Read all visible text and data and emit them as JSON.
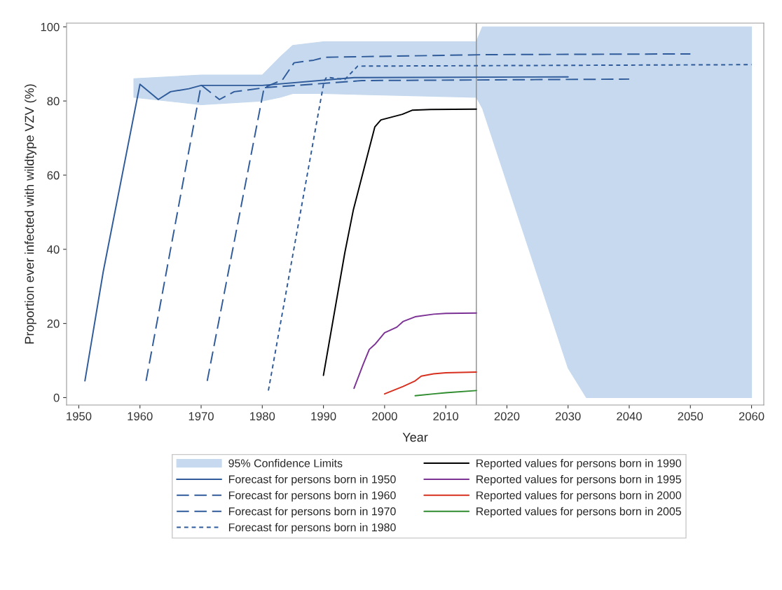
{
  "chart_data": {
    "type": "line",
    "xlabel": "Year",
    "ylabel": "Proportion ever infected with wildtype VZV (%)",
    "xlim": [
      1948,
      2062
    ],
    "xticks": [
      1950,
      1960,
      1970,
      1980,
      1990,
      2000,
      2010,
      2020,
      2030,
      2040,
      2050,
      2060
    ],
    "ylim": [
      -2,
      101
    ],
    "yticks": [
      0,
      20,
      40,
      60,
      80,
      100
    ],
    "grid": false,
    "legend": "bottom",
    "marker": "none",
    "ref_lines": [
      {
        "axis": "x",
        "value": 2015,
        "color": "#8c8c8c",
        "line_style": "solid"
      }
    ],
    "series": [
      {
        "name": "95% Confidence Limits",
        "type": "area",
        "color": "#c6d9ee",
        "x": [
          1959,
          1970,
          1980,
          1983,
          1985,
          1990,
          2015,
          2016,
          2020,
          2025,
          2030,
          2033,
          2060
        ],
        "values": [
          null,
          null,
          null,
          null,
          null,
          null,
          null,
          null,
          null,
          null,
          null,
          null,
          null
        ],
        "upper": [
          86,
          87,
          87,
          92,
          95,
          96,
          96,
          100,
          100,
          100,
          100,
          100,
          100
        ],
        "lower": [
          81,
          79,
          80,
          81,
          82,
          82,
          81,
          78,
          58,
          33,
          8,
          0,
          0
        ]
      },
      {
        "name": "Forecast for persons born in 1950",
        "color": "#2f5b9a",
        "line_style": "solid",
        "x": [
          1951,
          1954,
          1960,
          1963,
          1965,
          1968,
          1970,
          1980,
          1995,
          2030
        ],
        "values": [
          4.5,
          34,
          84.5,
          80.4,
          82.5,
          83.3,
          84.2,
          84.2,
          86.3,
          86.5
        ]
      },
      {
        "name": "Forecast for persons born in 1960",
        "color": "#2f5b9a",
        "line_style": "dashed",
        "x": [
          1961,
          1970,
          1973,
          1975.4,
          1980.5,
          1996.3,
          2040
        ],
        "values": [
          4.5,
          84.3,
          80.4,
          82.5,
          83.6,
          85.5,
          85.9
        ]
      },
      {
        "name": "Forecast for persons born in 1970",
        "color": "#2f5b9a",
        "line_style": "dashed",
        "x": [
          1971,
          1980.3,
          1983.3,
          1985.2,
          1988.4,
          1990.3,
          2016.8,
          2050
        ],
        "values": [
          4.5,
          83.6,
          85.7,
          90.3,
          91,
          91.8,
          92.5,
          92.7
        ]
      },
      {
        "name": "Forecast for persons born in 1980",
        "color": "#2f5b9a",
        "line_style": "dotted",
        "x": [
          1981,
          1990.1,
          1990.5,
          1993.5,
          1995.6,
          2060
        ],
        "values": [
          1.9,
          85.3,
          86.4,
          85.8,
          89.4,
          89.8
        ]
      },
      {
        "name": "Reported values for persons born in 1990",
        "color": "#000000",
        "line_style": "solid",
        "x": [
          1990,
          1993.5,
          1994.9,
          1998.4,
          1999.4,
          2002.9,
          2004.5,
          2007.5,
          2015
        ],
        "values": [
          6,
          39.1,
          50.7,
          73,
          74.9,
          76.4,
          77.5,
          77.7,
          77.8
        ]
      },
      {
        "name": "Reported values for persons born in 1995",
        "color": "#7b3294",
        "line_style": "solid",
        "x": [
          1995,
          1996.5,
          1997.5,
          1998.5,
          2000,
          2002,
          2003,
          2005,
          2008,
          2010,
          2015
        ],
        "values": [
          2.5,
          9,
          13,
          14.5,
          17.5,
          19,
          20.5,
          21.8,
          22.5,
          22.7,
          22.8
        ]
      },
      {
        "name": "Reported values for persons born in 2000",
        "color": "#d7301f",
        "line_style": "solid",
        "x": [
          2000,
          2003,
          2005,
          2006,
          2008,
          2010,
          2015
        ],
        "values": [
          1,
          3,
          4.5,
          5.8,
          6.4,
          6.7,
          6.9
        ]
      },
      {
        "name": "Reported values for persons born in 2005",
        "color": "#2e8b2e",
        "line_style": "solid",
        "x": [
          2005,
          2008,
          2010,
          2015
        ],
        "values": [
          0.5,
          1,
          1.3,
          1.9
        ]
      }
    ]
  }
}
